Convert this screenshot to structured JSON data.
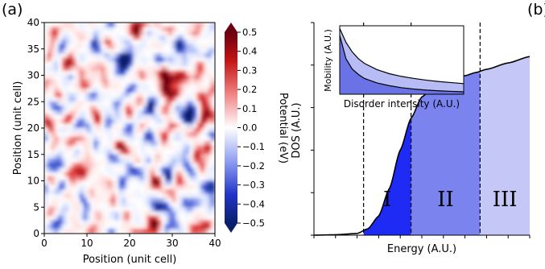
{
  "chart_data": [
    {
      "type": "heatmap",
      "panel_label": "(a)",
      "xlabel": "Position (unit cell)",
      "ylabel": "Position (unit cell)",
      "xlim": [
        0,
        40
      ],
      "ylim": [
        0,
        40
      ],
      "xticks": [
        "0",
        "10",
        "20",
        "30",
        "40"
      ],
      "yticks": [
        "0",
        "5",
        "10",
        "15",
        "20",
        "25",
        "30",
        "35",
        "40"
      ],
      "colorbar": {
        "label": "Potential (eV)",
        "range": [
          -0.5,
          0.5
        ],
        "ticks": [
          "0.5",
          "0.4",
          "0.3",
          "0.2",
          "0.1",
          "0.0",
          "−0.1",
          "−0.2",
          "−0.3",
          "−0.4",
          "−0.5"
        ],
        "colormap": [
          "#0a1f6b",
          "#3a55d6",
          "#dfe6ff",
          "#ffffff",
          "#ffdcdc",
          "#e03232",
          "#6b0010"
        ]
      }
    },
    {
      "type": "area",
      "panel_label": "(b)",
      "xlabel": "Energy (A.U.)",
      "ylabel": "DOS (A.U.)",
      "xlim": [
        0,
        10
      ],
      "ylim": [
        0,
        10
      ],
      "dos_curve": {
        "x": [
          0,
          1,
          2,
          2.5,
          3,
          3.5,
          4,
          4.5,
          5,
          5.5,
          6,
          6.5,
          7,
          7.5,
          8,
          9,
          10
        ],
        "y": [
          0,
          0.02,
          0.08,
          0.3,
          0.9,
          2.2,
          4.0,
          5.5,
          6.5,
          6.95,
          7.2,
          7.35,
          7.5,
          7.65,
          7.8,
          8.1,
          8.4
        ]
      },
      "dividers_x": [
        2.3,
        4.5,
        7.7
      ],
      "regions": [
        {
          "label": "I",
          "from": 2.3,
          "to": 4.5,
          "color": "#1e2bf5"
        },
        {
          "label": "II",
          "from": 4.5,
          "to": 7.7,
          "color": "#7b84ee"
        },
        {
          "label": "III",
          "from": 7.7,
          "to": 10,
          "color": "#c5c8f6"
        }
      ],
      "inset": {
        "xlabel": "Disorder intensity (A.U.)",
        "ylabel": "Mobility (A.U.)",
        "x": [
          0,
          0.5,
          1,
          1.5,
          2,
          3,
          4,
          5,
          6,
          7,
          8,
          9,
          10
        ],
        "series": [
          {
            "values": [
              9.6,
              7.6,
              6.2,
              5.2,
              4.5,
              3.6,
              3.0,
              2.6,
              2.3,
              2.05,
              1.85,
              1.7,
              1.55
            ],
            "color": "#b8bcf4"
          },
          {
            "values": [
              8.6,
              5.2,
              3.7,
              2.9,
              2.3,
              1.65,
              1.25,
              0.95,
              0.75,
              0.6,
              0.5,
              0.42,
              0.35
            ],
            "color": "#6a72e6"
          }
        ]
      }
    }
  ]
}
